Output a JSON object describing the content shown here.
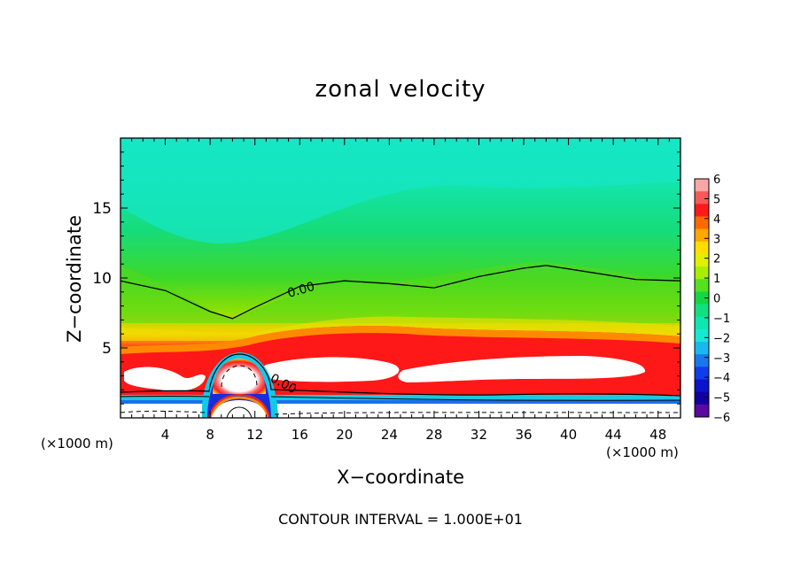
{
  "chart_data": {
    "type": "heatmap",
    "title": "zonal velocity",
    "xlabel": "X−coordinate",
    "ylabel": "Z−coordinate",
    "x_unit": "(×1000 m)",
    "footer": "CONTOUR INTERVAL = 1.000E+01",
    "xlim": [
      0,
      50
    ],
    "ylim": [
      0,
      20
    ],
    "x_ticks": [
      4,
      8,
      12,
      16,
      20,
      24,
      28,
      32,
      36,
      40,
      44,
      48
    ],
    "y_ticks": [
      5,
      10,
      15
    ],
    "colorbar": {
      "min": -6,
      "max": 6,
      "ticks": [
        "6",
        "5",
        "4",
        "3",
        "2",
        "1",
        "0",
        "−1",
        "−2",
        "−3",
        "−4",
        "−5",
        "−6"
      ],
      "colors": [
        "#f9a6a6",
        "#f45a5a",
        "#ff1a1a",
        "#ff6a00",
        "#ffa800",
        "#ffde00",
        "#e0f000",
        "#a8ee00",
        "#55e020",
        "#14d645",
        "#11e080",
        "#0ee8b0",
        "#15e9d6",
        "#1ab8f0",
        "#1978ee",
        "#103cea",
        "#0a14cc",
        "#1200a0",
        "#5a0aa0"
      ]
    },
    "contour_labels": [
      "0.00",
      "0.00"
    ],
    "zero_contour": {
      "x": [
        0,
        4,
        8,
        10,
        12,
        16,
        20,
        24,
        28,
        32,
        36,
        38,
        42,
        46,
        50
      ],
      "y": [
        9.8,
        9.1,
        7.6,
        7.1,
        7.9,
        9.4,
        9.8,
        9.6,
        9.3,
        10.1,
        10.7,
        10.9,
        10.4,
        9.9,
        9.8
      ]
    },
    "field_description_values": {
      "upper_level_u": -2,
      "mid_level_u": 0,
      "jet_core_u_min": 6,
      "jet_core_height": [
        2.5,
        4.5
      ],
      "surface_jet_u_max": -6
    }
  }
}
